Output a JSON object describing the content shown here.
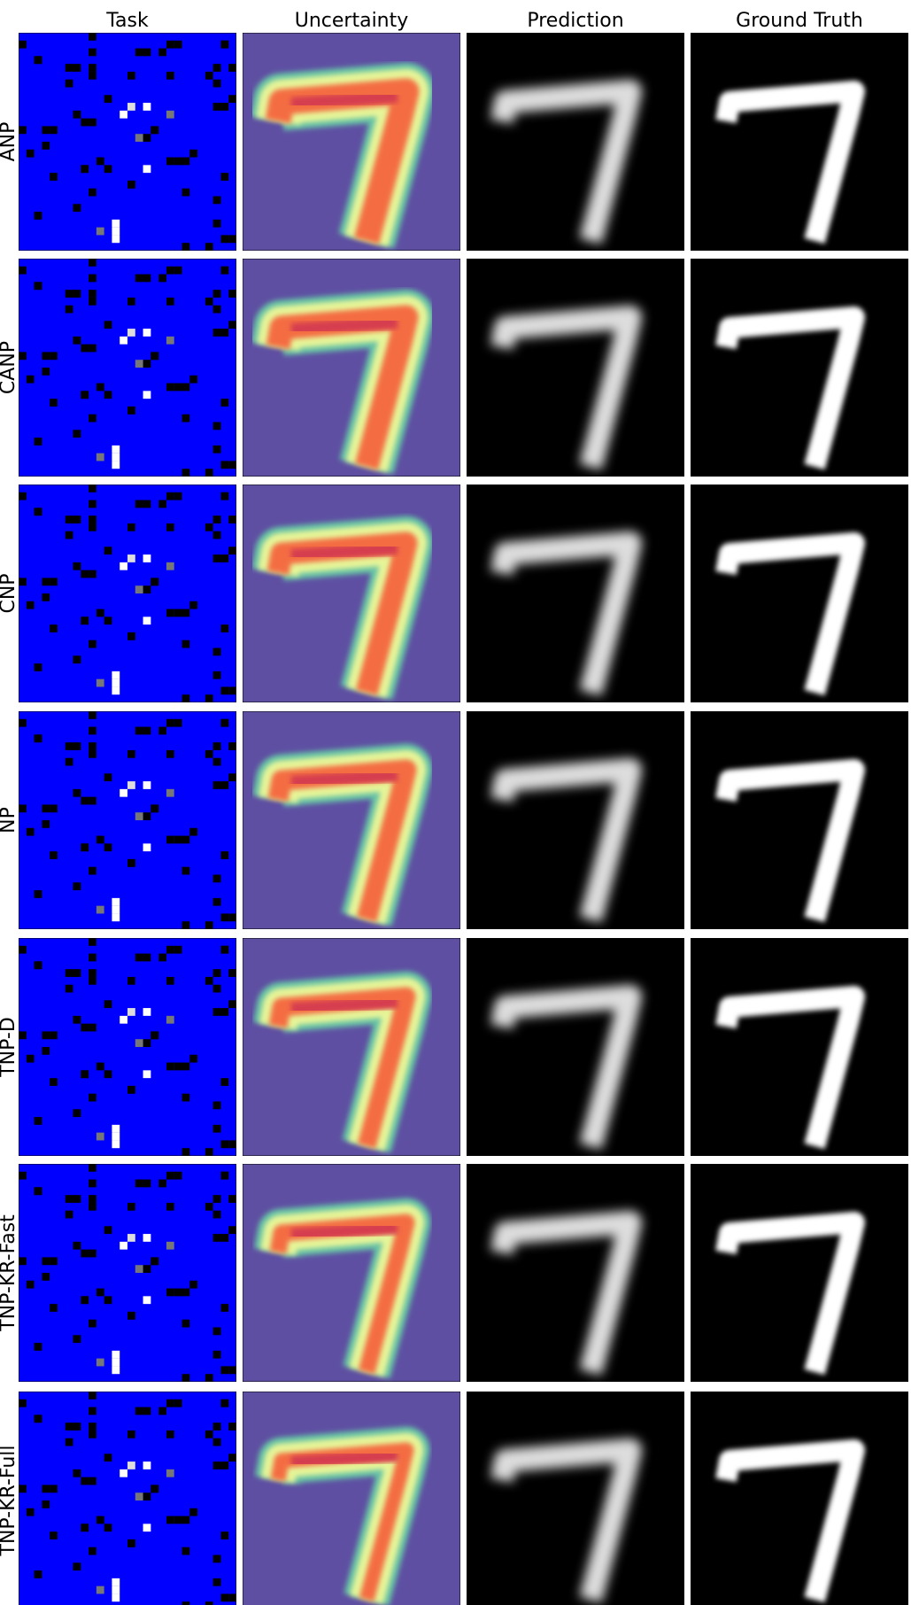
{
  "columns": [
    "Task",
    "Uncertainty",
    "Prediction",
    "Ground Truth"
  ],
  "rows": [
    "ANP",
    "CANP",
    "CNP",
    "NP",
    "TNP-D",
    "TNP-KR-Fast",
    "TNP-KR-Full"
  ]
}
